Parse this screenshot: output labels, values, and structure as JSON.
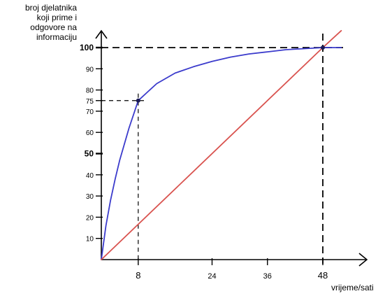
{
  "chart_data": {
    "type": "line",
    "ylabel_lines": [
      "broj djelatnika",
      "koji prime i",
      "odgovore na",
      "informaciju"
    ],
    "xlabel": "vrijeme/sati",
    "xlim": [
      0,
      52
    ],
    "ylim": [
      0,
      100
    ],
    "x_ticks": [
      8,
      24,
      36,
      48
    ],
    "y_ticks": [
      10,
      20,
      30,
      40,
      50,
      60,
      70,
      75,
      80,
      90,
      100
    ],
    "y_ticks_bold": [
      50,
      100
    ],
    "series": [
      {
        "color": "#3b3bcc",
        "x": [
          0,
          1,
          2,
          3,
          4,
          6,
          8,
          10,
          12,
          16,
          20,
          24,
          28,
          32,
          36,
          40,
          44,
          48,
          50,
          52
        ],
        "y": [
          0,
          16,
          28,
          38,
          47,
          62,
          75,
          79,
          83,
          88,
          91,
          93.5,
          95.5,
          97,
          98,
          99,
          99.5,
          100,
          100,
          100
        ]
      },
      {
        "color": "#d9534f",
        "x": [
          0,
          48,
          52
        ],
        "y": [
          0,
          100,
          108
        ]
      }
    ],
    "reference_points": [
      {
        "x": 8,
        "y": 75
      },
      {
        "x": 48,
        "y": 100
      }
    ]
  }
}
